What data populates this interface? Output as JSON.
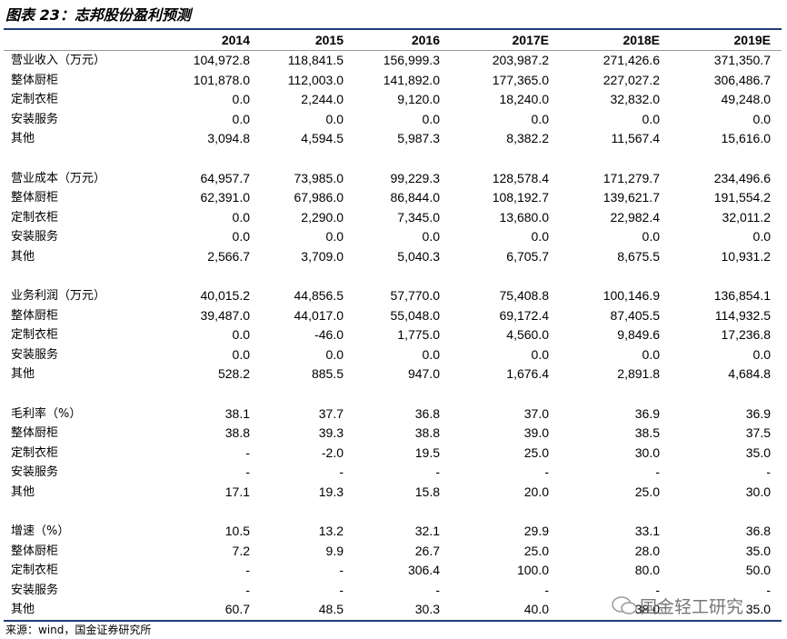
{
  "header": {
    "title": "图表 23：志邦股份盈利预测"
  },
  "table": {
    "columns": [
      "2014",
      "2015",
      "2016",
      "2017E",
      "2018E",
      "2019E"
    ],
    "groups": [
      {
        "rows": [
          [
            "营业收入（万元）",
            "104,972.8",
            "118,841.5",
            "156,999.3",
            "203,987.2",
            "271,426.6",
            "371,350.7"
          ],
          [
            "整体厨柜",
            "101,878.0",
            "112,003.0",
            "141,892.0",
            "177,365.0",
            "227,027.2",
            "306,486.7"
          ],
          [
            "定制衣柜",
            "0.0",
            "2,244.0",
            "9,120.0",
            "18,240.0",
            "32,832.0",
            "49,248.0"
          ],
          [
            "安装服务",
            "0.0",
            "0.0",
            "0.0",
            "0.0",
            "0.0",
            "0.0"
          ],
          [
            "其他",
            "3,094.8",
            "4,594.5",
            "5,987.3",
            "8,382.2",
            "11,567.4",
            "15,616.0"
          ]
        ]
      },
      {
        "rows": [
          [
            "营业成本（万元）",
            "64,957.7",
            "73,985.0",
            "99,229.3",
            "128,578.4",
            "171,279.7",
            "234,496.6"
          ],
          [
            "整体厨柜",
            "62,391.0",
            "67,986.0",
            "86,844.0",
            "108,192.7",
            "139,621.7",
            "191,554.2"
          ],
          [
            "定制衣柜",
            "0.0",
            "2,290.0",
            "7,345.0",
            "13,680.0",
            "22,982.4",
            "32,011.2"
          ],
          [
            "安装服务",
            "0.0",
            "0.0",
            "0.0",
            "0.0",
            "0.0",
            "0.0"
          ],
          [
            "其他",
            "2,566.7",
            "3,709.0",
            "5,040.3",
            "6,705.7",
            "8,675.5",
            "10,931.2"
          ]
        ]
      },
      {
        "rows": [
          [
            "业务利润（万元）",
            "40,015.2",
            "44,856.5",
            "57,770.0",
            "75,408.8",
            "100,146.9",
            "136,854.1"
          ],
          [
            "整体厨柜",
            "39,487.0",
            "44,017.0",
            "55,048.0",
            "69,172.4",
            "87,405.5",
            "114,932.5"
          ],
          [
            "定制衣柜",
            "0.0",
            "-46.0",
            "1,775.0",
            "4,560.0",
            "9,849.6",
            "17,236.8"
          ],
          [
            "安装服务",
            "0.0",
            "0.0",
            "0.0",
            "0.0",
            "0.0",
            "0.0"
          ],
          [
            "其他",
            "528.2",
            "885.5",
            "947.0",
            "1,676.4",
            "2,891.8",
            "4,684.8"
          ]
        ]
      },
      {
        "rows": [
          [
            "毛利率（%）",
            "38.1",
            "37.7",
            "36.8",
            "37.0",
            "36.9",
            "36.9"
          ],
          [
            "整体厨柜",
            "38.8",
            "39.3",
            "38.8",
            "39.0",
            "38.5",
            "37.5"
          ],
          [
            "定制衣柜",
            "-",
            "-2.0",
            "19.5",
            "25.0",
            "30.0",
            "35.0"
          ],
          [
            "安装服务",
            "-",
            "-",
            "-",
            "-",
            "-",
            "-"
          ],
          [
            "其他",
            "17.1",
            "19.3",
            "15.8",
            "20.0",
            "25.0",
            "30.0"
          ]
        ]
      },
      {
        "rows": [
          [
            "增速（%）",
            "10.5",
            "13.2",
            "32.1",
            "29.9",
            "33.1",
            "36.8"
          ],
          [
            "整体厨柜",
            "7.2",
            "9.9",
            "26.7",
            "25.0",
            "28.0",
            "35.0"
          ],
          [
            "定制衣柜",
            "-",
            "-",
            "306.4",
            "100.0",
            "80.0",
            "50.0"
          ],
          [
            "安装服务",
            "-",
            "-",
            "-",
            "-",
            "-",
            "-"
          ],
          [
            "其他",
            "60.7",
            "48.5",
            "30.3",
            "40.0",
            "38.0",
            "35.0"
          ]
        ]
      }
    ]
  },
  "footer": {
    "source": "来源：wind，国金证券研究所",
    "watermark": "国金轻工研究"
  }
}
